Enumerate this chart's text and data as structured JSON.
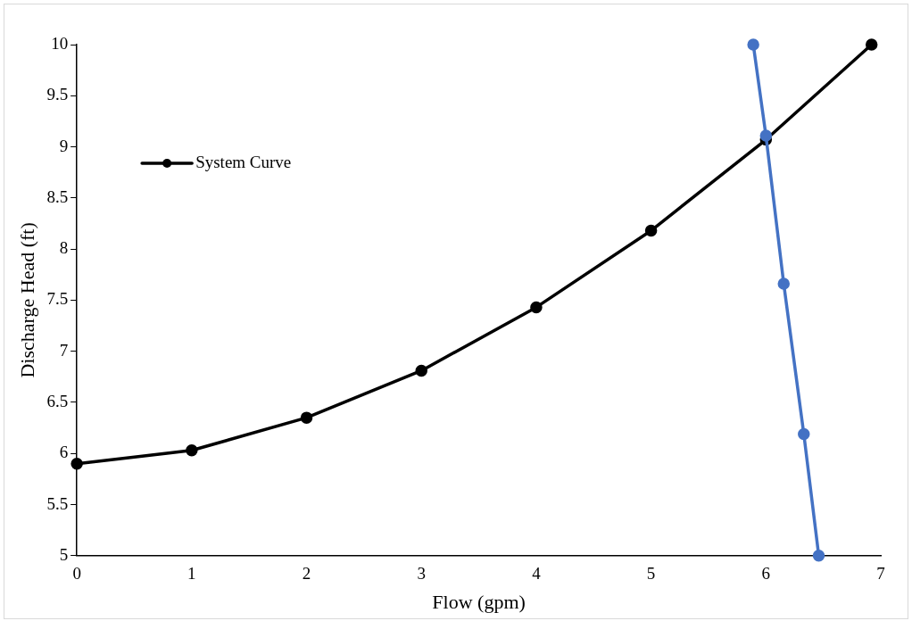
{
  "chart_data": {
    "type": "line",
    "xlabel": "Flow (gpm)",
    "ylabel": "Discharge Head (ft)",
    "xlim": [
      0,
      7
    ],
    "xticks": [
      0,
      1,
      2,
      3,
      4,
      5,
      6,
      7
    ],
    "ylim": [
      5,
      10
    ],
    "yticks": [
      5,
      5.5,
      6,
      6.5,
      7,
      7.5,
      8,
      8.5,
      9,
      9.5,
      10
    ],
    "series": [
      {
        "name": "System Curve",
        "color": "#000000",
        "x": [
          0,
          1,
          2,
          3,
          4,
          5,
          6,
          6.92
        ],
        "values": [
          5.9,
          6.03,
          6.35,
          6.81,
          7.43,
          8.18,
          9.07,
          10
        ]
      },
      {
        "color": "#4472c4",
        "x": [
          5.89,
          6.0,
          6.155,
          6.33,
          6.46
        ],
        "values": [
          10,
          9.11,
          7.66,
          6.19,
          5
        ]
      }
    ],
    "marker": "circle",
    "line_style": "solid",
    "grid": false,
    "legend": "left"
  }
}
